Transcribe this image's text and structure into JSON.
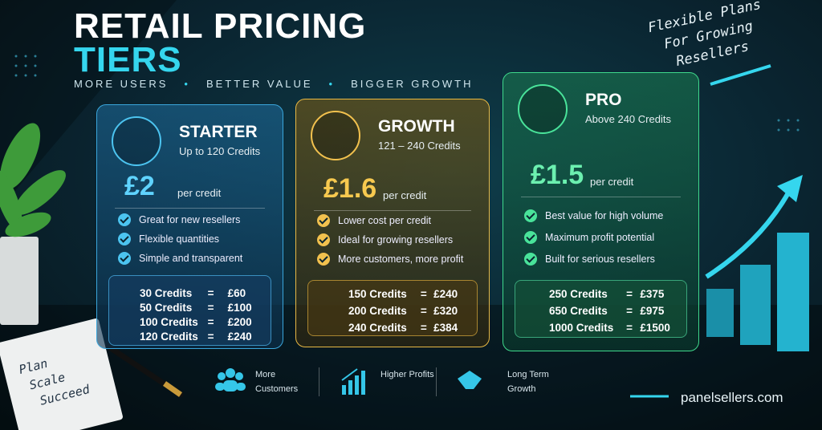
{
  "header": {
    "title_line1": "RETAIL PRICING",
    "title_line2": "TIERS",
    "tagline": [
      "MORE USERS",
      "BETTER VALUE",
      "BIGGER GROWTH"
    ]
  },
  "corner_note": [
    "Flexible Plans",
    "For Growing",
    "Resellers"
  ],
  "notebook": [
    "Plan",
    "Scale",
    "Succeed"
  ],
  "tiers": [
    {
      "name": "STARTER",
      "range": "Up to 120 Credits",
      "price": "£2",
      "unit": "per credit",
      "features": [
        "Great for new resellers",
        "Flexible quantities",
        "Simple and transparent"
      ],
      "examples": [
        [
          "30 Credits",
          "=",
          "£60"
        ],
        [
          "50 Credits",
          "=",
          "£100"
        ],
        [
          "100 Credits",
          "=",
          "£200"
        ],
        [
          "120 Credits",
          "=",
          "£240"
        ]
      ]
    },
    {
      "name": "GROWTH",
      "range": "121 – 240 Credits",
      "price": "£1.6",
      "unit": "per credit",
      "features": [
        "Lower cost per credit",
        "Ideal for growing resellers",
        "More customers, more profit"
      ],
      "examples": [
        [
          "150 Credits",
          "=",
          "£240"
        ],
        [
          "200 Credits",
          "=",
          "£320"
        ],
        [
          "240 Credits",
          "=",
          "£384"
        ]
      ]
    },
    {
      "name": "PRO",
      "range": "Above 240 Credits",
      "price": "£1.5",
      "unit": "per credit",
      "features": [
        "Best value for high volume",
        "Maximum profit potential",
        "Built for serious resellers"
      ],
      "examples": [
        [
          "250 Credits",
          "=",
          "£375"
        ],
        [
          "650 Credits",
          "=",
          "£975"
        ],
        [
          "1000 Credits",
          "=",
          "£1500"
        ]
      ]
    }
  ],
  "benefits": [
    "More Customers",
    "Higher Profits",
    "Long Term Growth"
  ],
  "footer": {
    "website": "panelsellers.com"
  }
}
